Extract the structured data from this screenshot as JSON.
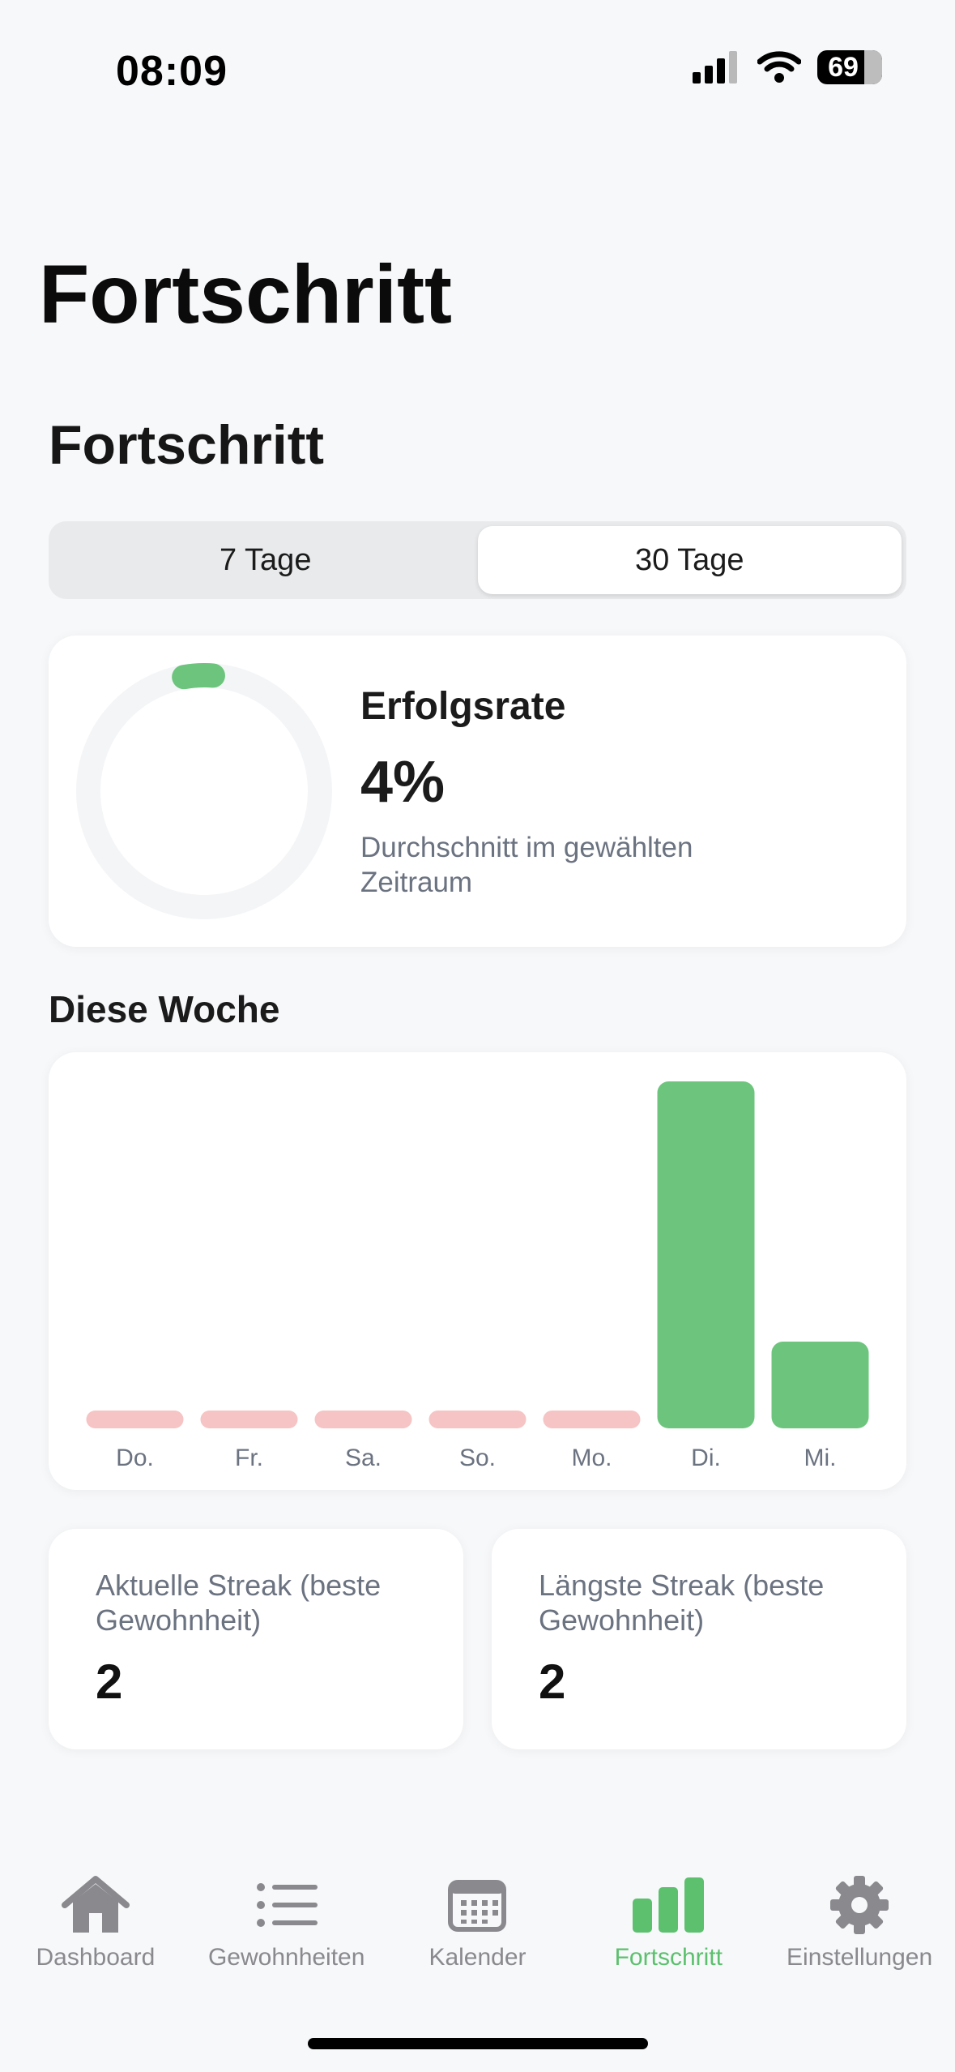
{
  "status": {
    "time": "08:09",
    "battery": "69"
  },
  "page_title": "Fortschritt",
  "section_title": "Fortschritt",
  "segments": [
    {
      "label": "7 Tage",
      "active": false
    },
    {
      "label": "30 Tage",
      "active": true
    }
  ],
  "rate_card": {
    "label": "Erfolgsrate",
    "value": "4%",
    "percent": 4,
    "subtitle": "Durchschnitt im gewählten Zeitraum"
  },
  "week_title": "Diese Woche",
  "chart_data": {
    "type": "bar",
    "categories": [
      "Do.",
      "Fr.",
      "Sa.",
      "So.",
      "Mo.",
      "Di.",
      "Mi."
    ],
    "values": [
      0,
      0,
      0,
      0,
      0,
      1.0,
      0.25
    ],
    "ylim": [
      0,
      1
    ],
    "colors": {
      "filled": "#6dc57d",
      "empty": "#f6c4c4"
    }
  },
  "streaks": [
    {
      "label": "Aktuelle Streak (beste Gewohnheit)",
      "value": "2"
    },
    {
      "label": "Längste Streak (beste Gewohnheit)",
      "value": "2"
    }
  ],
  "tabs": [
    {
      "label": "Dashboard",
      "icon": "house-icon",
      "active": false
    },
    {
      "label": "Gewohnheiten",
      "icon": "list-icon",
      "active": false
    },
    {
      "label": "Kalender",
      "icon": "calendar-icon",
      "active": false
    },
    {
      "label": "Fortschritt",
      "icon": "bar-chart-icon",
      "active": true
    },
    {
      "label": "Einstellungen",
      "icon": "gear-icon",
      "active": false
    }
  ],
  "colors": {
    "accent": "#5cc06e",
    "inactive": "#8a8a8e",
    "ring_track": "#f4f5f7"
  }
}
